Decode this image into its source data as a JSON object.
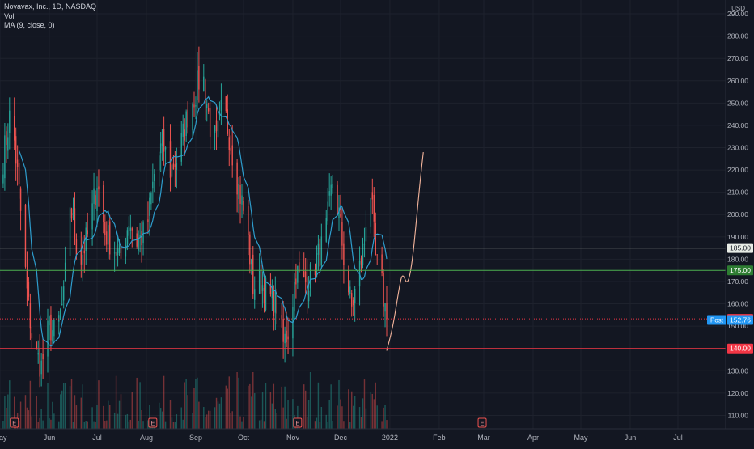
{
  "legend": {
    "symbol": "Novavax, Inc., 1D, NASDAQ",
    "volume": "Vol",
    "ma": "MA (9, close, 0)"
  },
  "chart_data": {
    "type": "candlestick",
    "currency": "USD",
    "ylim": [
      104,
      294
    ],
    "y_ticks": [
      110,
      120,
      130,
      140,
      150,
      160,
      170,
      180,
      190,
      200,
      210,
      220,
      230,
      240,
      250,
      260,
      270,
      280,
      290
    ],
    "y_tick_labels": [
      "110.00",
      "120.00",
      "130.00",
      "140.00",
      "150.00",
      "160.00",
      "170.00",
      "180.00",
      "190.00",
      "200.00",
      "210.00",
      "220.00",
      "230.00",
      "240.00",
      "250.00",
      "260.00",
      "270.00",
      "280.00",
      "290.00"
    ],
    "x_range": [
      "2021-05-01",
      "2022-07-31"
    ],
    "x_ticks": [
      {
        "date": "2021-05-01",
        "label": "May"
      },
      {
        "date": "2021-06-01",
        "label": "Jun"
      },
      {
        "date": "2021-07-01",
        "label": "Jul"
      },
      {
        "date": "2021-08-01",
        "label": "Aug"
      },
      {
        "date": "2021-09-01",
        "label": "Sep"
      },
      {
        "date": "2021-10-01",
        "label": "Oct"
      },
      {
        "date": "2021-11-01",
        "label": "Nov"
      },
      {
        "date": "2021-12-01",
        "label": "Dec"
      },
      {
        "date": "2022-01-01",
        "label": "2022"
      },
      {
        "date": "2022-02-01",
        "label": "Feb"
      },
      {
        "date": "2022-03-01",
        "label": "Mar"
      },
      {
        "date": "2022-04-01",
        "label": "Apr"
      },
      {
        "date": "2022-05-01",
        "label": "May"
      },
      {
        "date": "2022-06-01",
        "label": "Jun"
      },
      {
        "date": "2022-07-01",
        "label": "Jul"
      }
    ],
    "price_anchors": [
      [
        "2021-05-03",
        225
      ],
      [
        "2021-05-08",
        248
      ],
      [
        "2021-05-13",
        210
      ],
      [
        "2021-05-18",
        165
      ],
      [
        "2021-05-22",
        140
      ],
      [
        "2021-05-27",
        132
      ],
      [
        "2021-06-01",
        150
      ],
      [
        "2021-06-05",
        146
      ],
      [
        "2021-06-10",
        162
      ],
      [
        "2021-06-14",
        205
      ],
      [
        "2021-06-20",
        178
      ],
      [
        "2021-06-26",
        193
      ],
      [
        "2021-07-01",
        215
      ],
      [
        "2021-07-06",
        192
      ],
      [
        "2021-07-11",
        186
      ],
      [
        "2021-07-16",
        180
      ],
      [
        "2021-07-21",
        198
      ],
      [
        "2021-07-26",
        188
      ],
      [
        "2021-08-01",
        192
      ],
      [
        "2021-08-06",
        218
      ],
      [
        "2021-08-11",
        232
      ],
      [
        "2021-08-16",
        220
      ],
      [
        "2021-08-21",
        226
      ],
      [
        "2021-08-27",
        245
      ],
      [
        "2021-09-01",
        255
      ],
      [
        "2021-09-05",
        265
      ],
      [
        "2021-09-10",
        240
      ],
      [
        "2021-09-14",
        232
      ],
      [
        "2021-09-18",
        250
      ],
      [
        "2021-09-23",
        232
      ],
      [
        "2021-09-28",
        212
      ],
      [
        "2021-10-03",
        195
      ],
      [
        "2021-10-07",
        168
      ],
      [
        "2021-10-12",
        170
      ],
      [
        "2021-10-17",
        163
      ],
      [
        "2021-10-22",
        160
      ],
      [
        "2021-10-26",
        142
      ],
      [
        "2021-10-30",
        150
      ],
      [
        "2021-11-03",
        175
      ],
      [
        "2021-11-07",
        168
      ],
      [
        "2021-11-12",
        172
      ],
      [
        "2021-11-16",
        180
      ],
      [
        "2021-11-21",
        188
      ],
      [
        "2021-11-26",
        215
      ],
      [
        "2021-11-30",
        200
      ],
      [
        "2021-12-04",
        175
      ],
      [
        "2021-12-08",
        158
      ],
      [
        "2021-12-12",
        172
      ],
      [
        "2021-12-16",
        188
      ],
      [
        "2021-12-19",
        220
      ],
      [
        "2021-12-23",
        180
      ],
      [
        "2021-12-27",
        168
      ],
      [
        "2021-12-30",
        153.25
      ]
    ],
    "ma_period": 9,
    "ma_color": "#2e9dcd",
    "up_color": "#26a69a",
    "down_color": "#ef5350",
    "projection_path": [
      [
        "2021-12-30",
        139
      ],
      [
        "2022-01-03",
        150
      ],
      [
        "2022-01-07",
        168
      ],
      [
        "2022-01-09",
        174
      ],
      [
        "2022-01-12",
        168
      ],
      [
        "2022-01-15",
        178
      ],
      [
        "2022-01-18",
        200
      ],
      [
        "2022-01-20",
        215
      ],
      [
        "2022-01-22",
        228
      ]
    ],
    "projection_color": "#f4b59c",
    "h_lines": [
      {
        "value": 185,
        "label": "185.00",
        "line": "#d6dfd0",
        "bg": "#e8ece6",
        "fg": "#131722"
      },
      {
        "value": 175,
        "label": "175.00",
        "line": "#4caf50",
        "bg": "#2e7d32",
        "fg": "#ffffff"
      },
      {
        "value": 140,
        "label": "140.00",
        "line": "#f23645",
        "bg": "#f23645",
        "fg": "#ffffff"
      }
    ],
    "last_price": {
      "value": 153.25,
      "label": "153.25",
      "bg": "#f23645"
    },
    "post_price": {
      "value": 152.76,
      "label": "152.76",
      "tag": "Post",
      "bg": "#2196f3"
    },
    "earnings_markers": [
      {
        "date": "2021-05-10",
        "label": "E"
      },
      {
        "date": "2021-08-05",
        "label": "E"
      },
      {
        "date": "2021-11-04",
        "label": "E"
      },
      {
        "date": "2022-02-28",
        "label": "E"
      }
    ]
  }
}
